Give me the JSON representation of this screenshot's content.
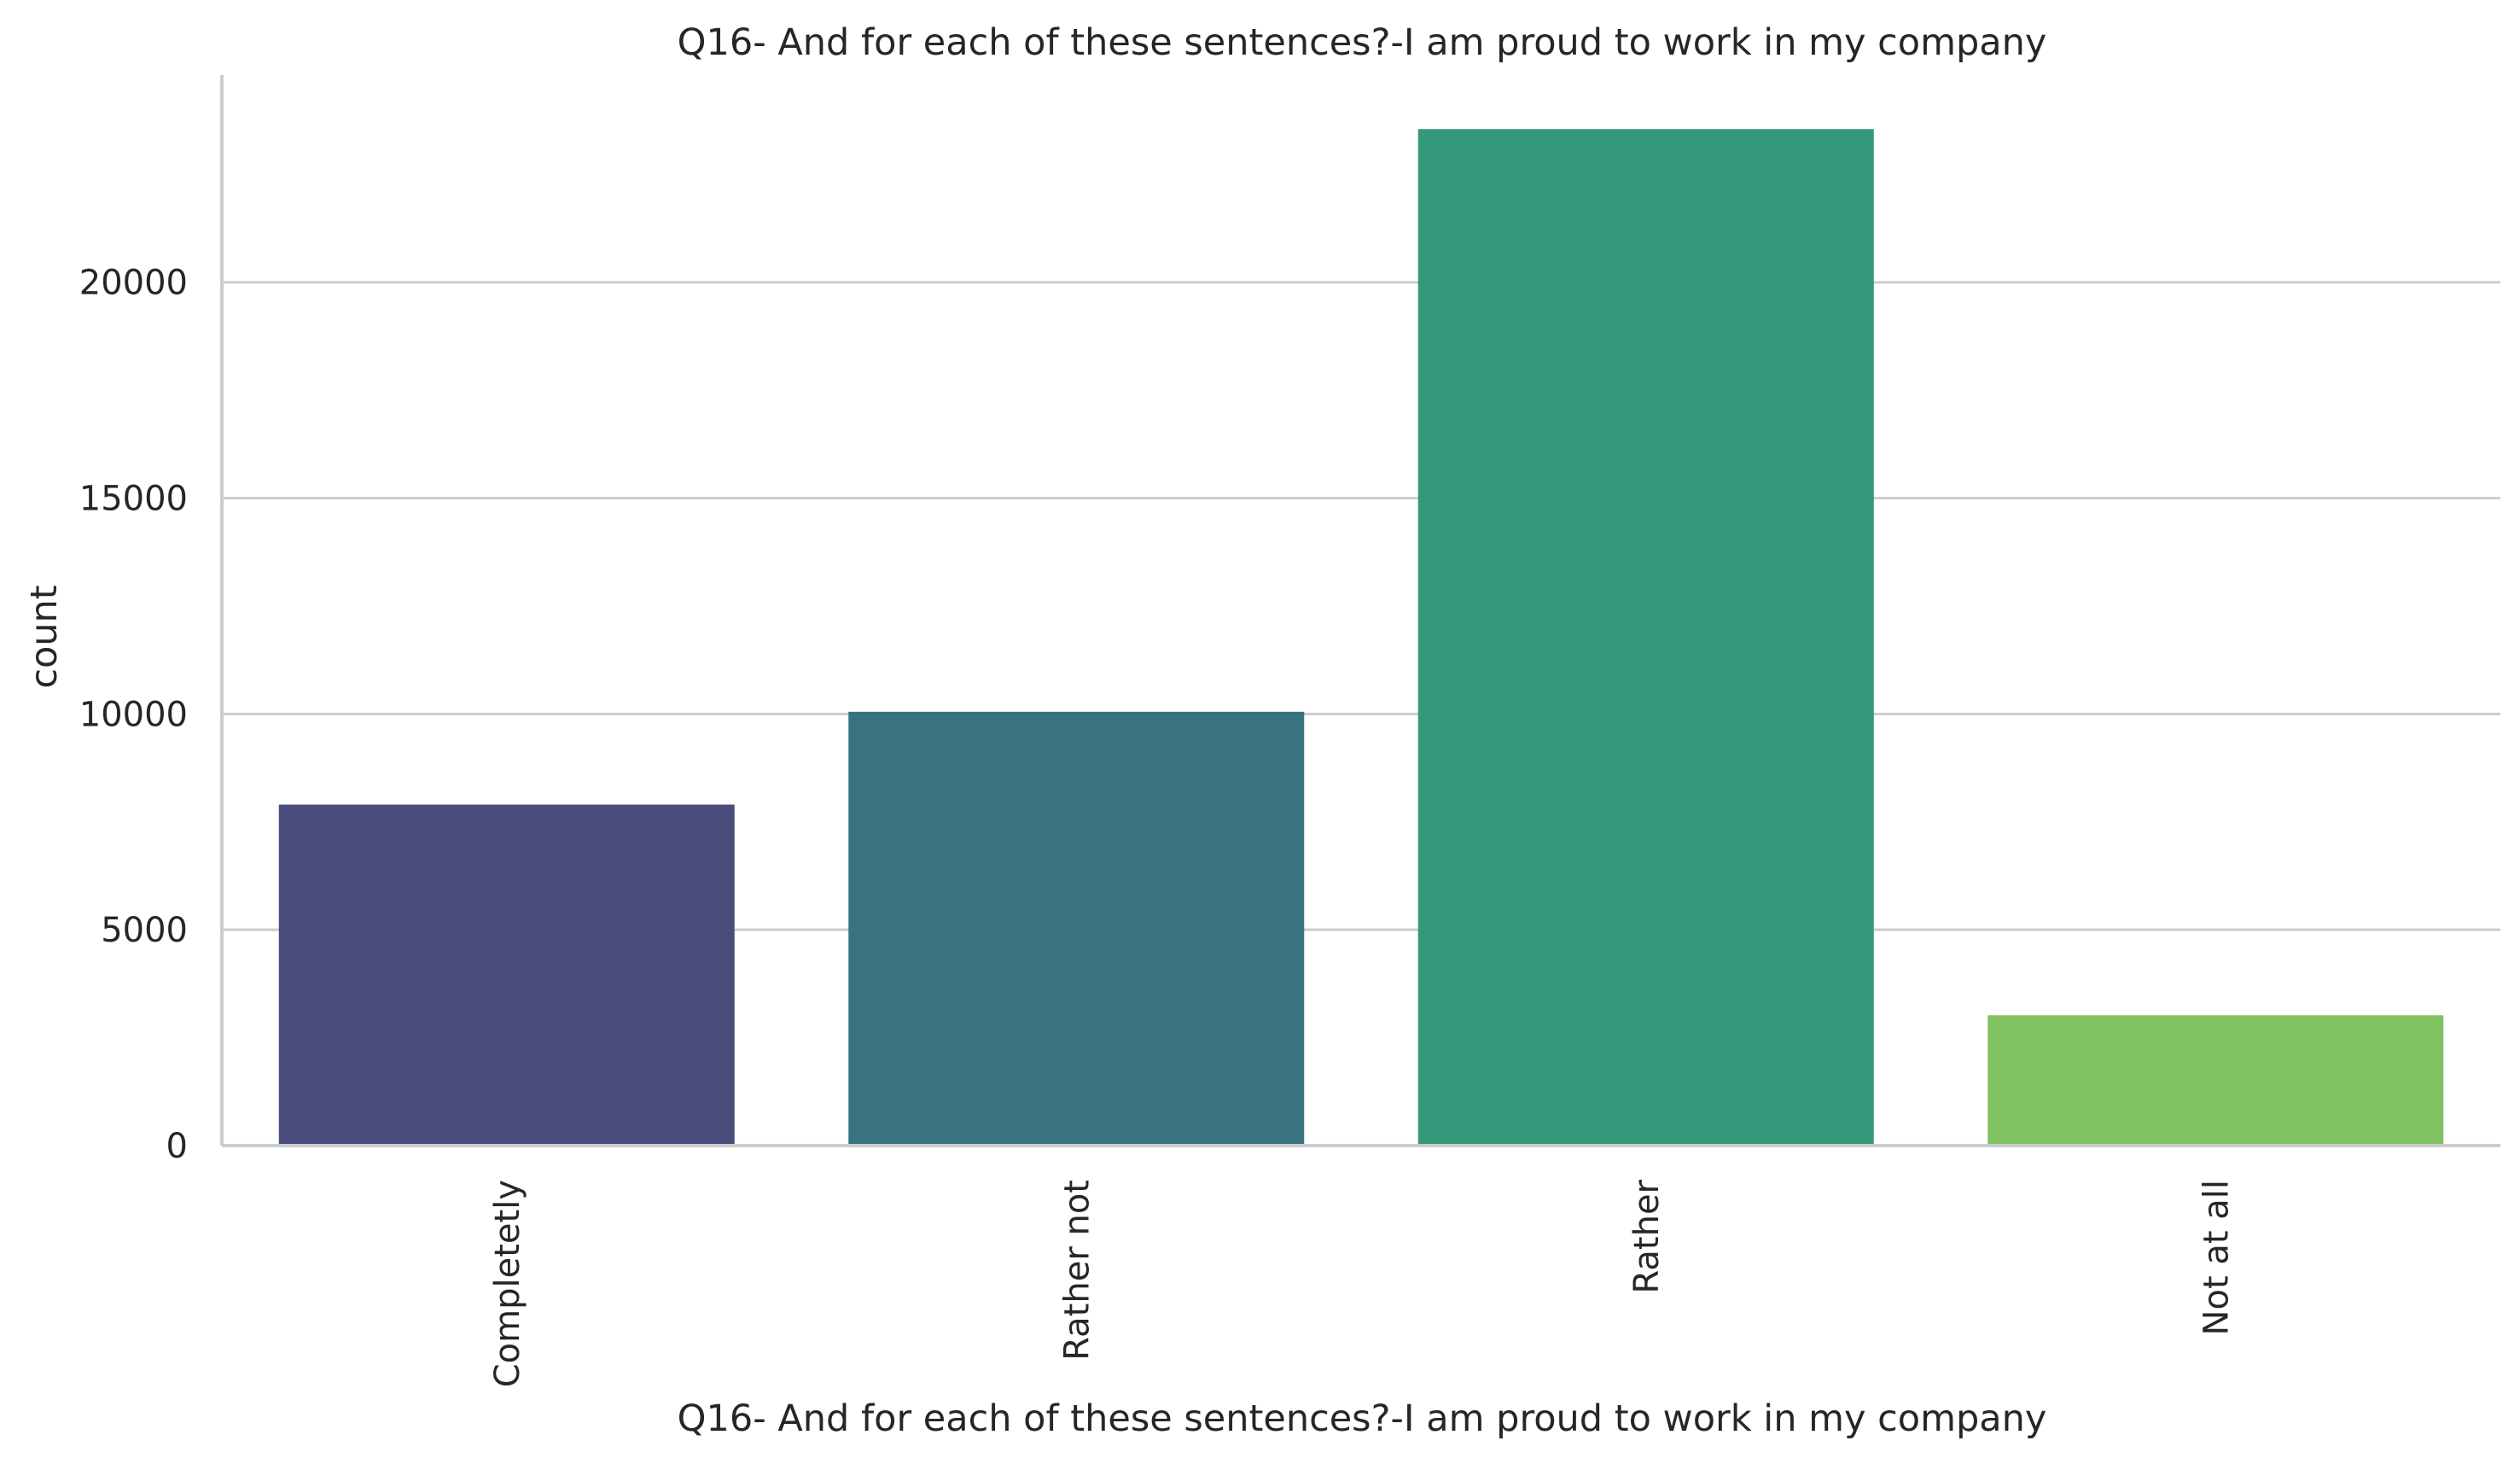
{
  "chart_data": {
    "type": "bar",
    "title": "Q16- And for each of these sentences?-I am proud to work in my company",
    "xlabel": "Q16- And for each of these sentences?-I am proud to work in my company",
    "ylabel": "count",
    "categories": [
      "Completetly",
      "Rather not",
      "Rather",
      "Not at all"
    ],
    "values": [
      7900,
      10050,
      23550,
      3020
    ],
    "colors": [
      "#4a4d7c",
      "#38737f",
      "#35987b",
      "#80c161"
    ],
    "ylim": [
      0,
      24800
    ],
    "yticks": [
      0,
      5000,
      10000,
      15000,
      20000
    ],
    "ytick_labels": [
      "0",
      "5000",
      "10000",
      "15000",
      "20000"
    ],
    "grid": "y",
    "xtick_rotation": -90
  }
}
